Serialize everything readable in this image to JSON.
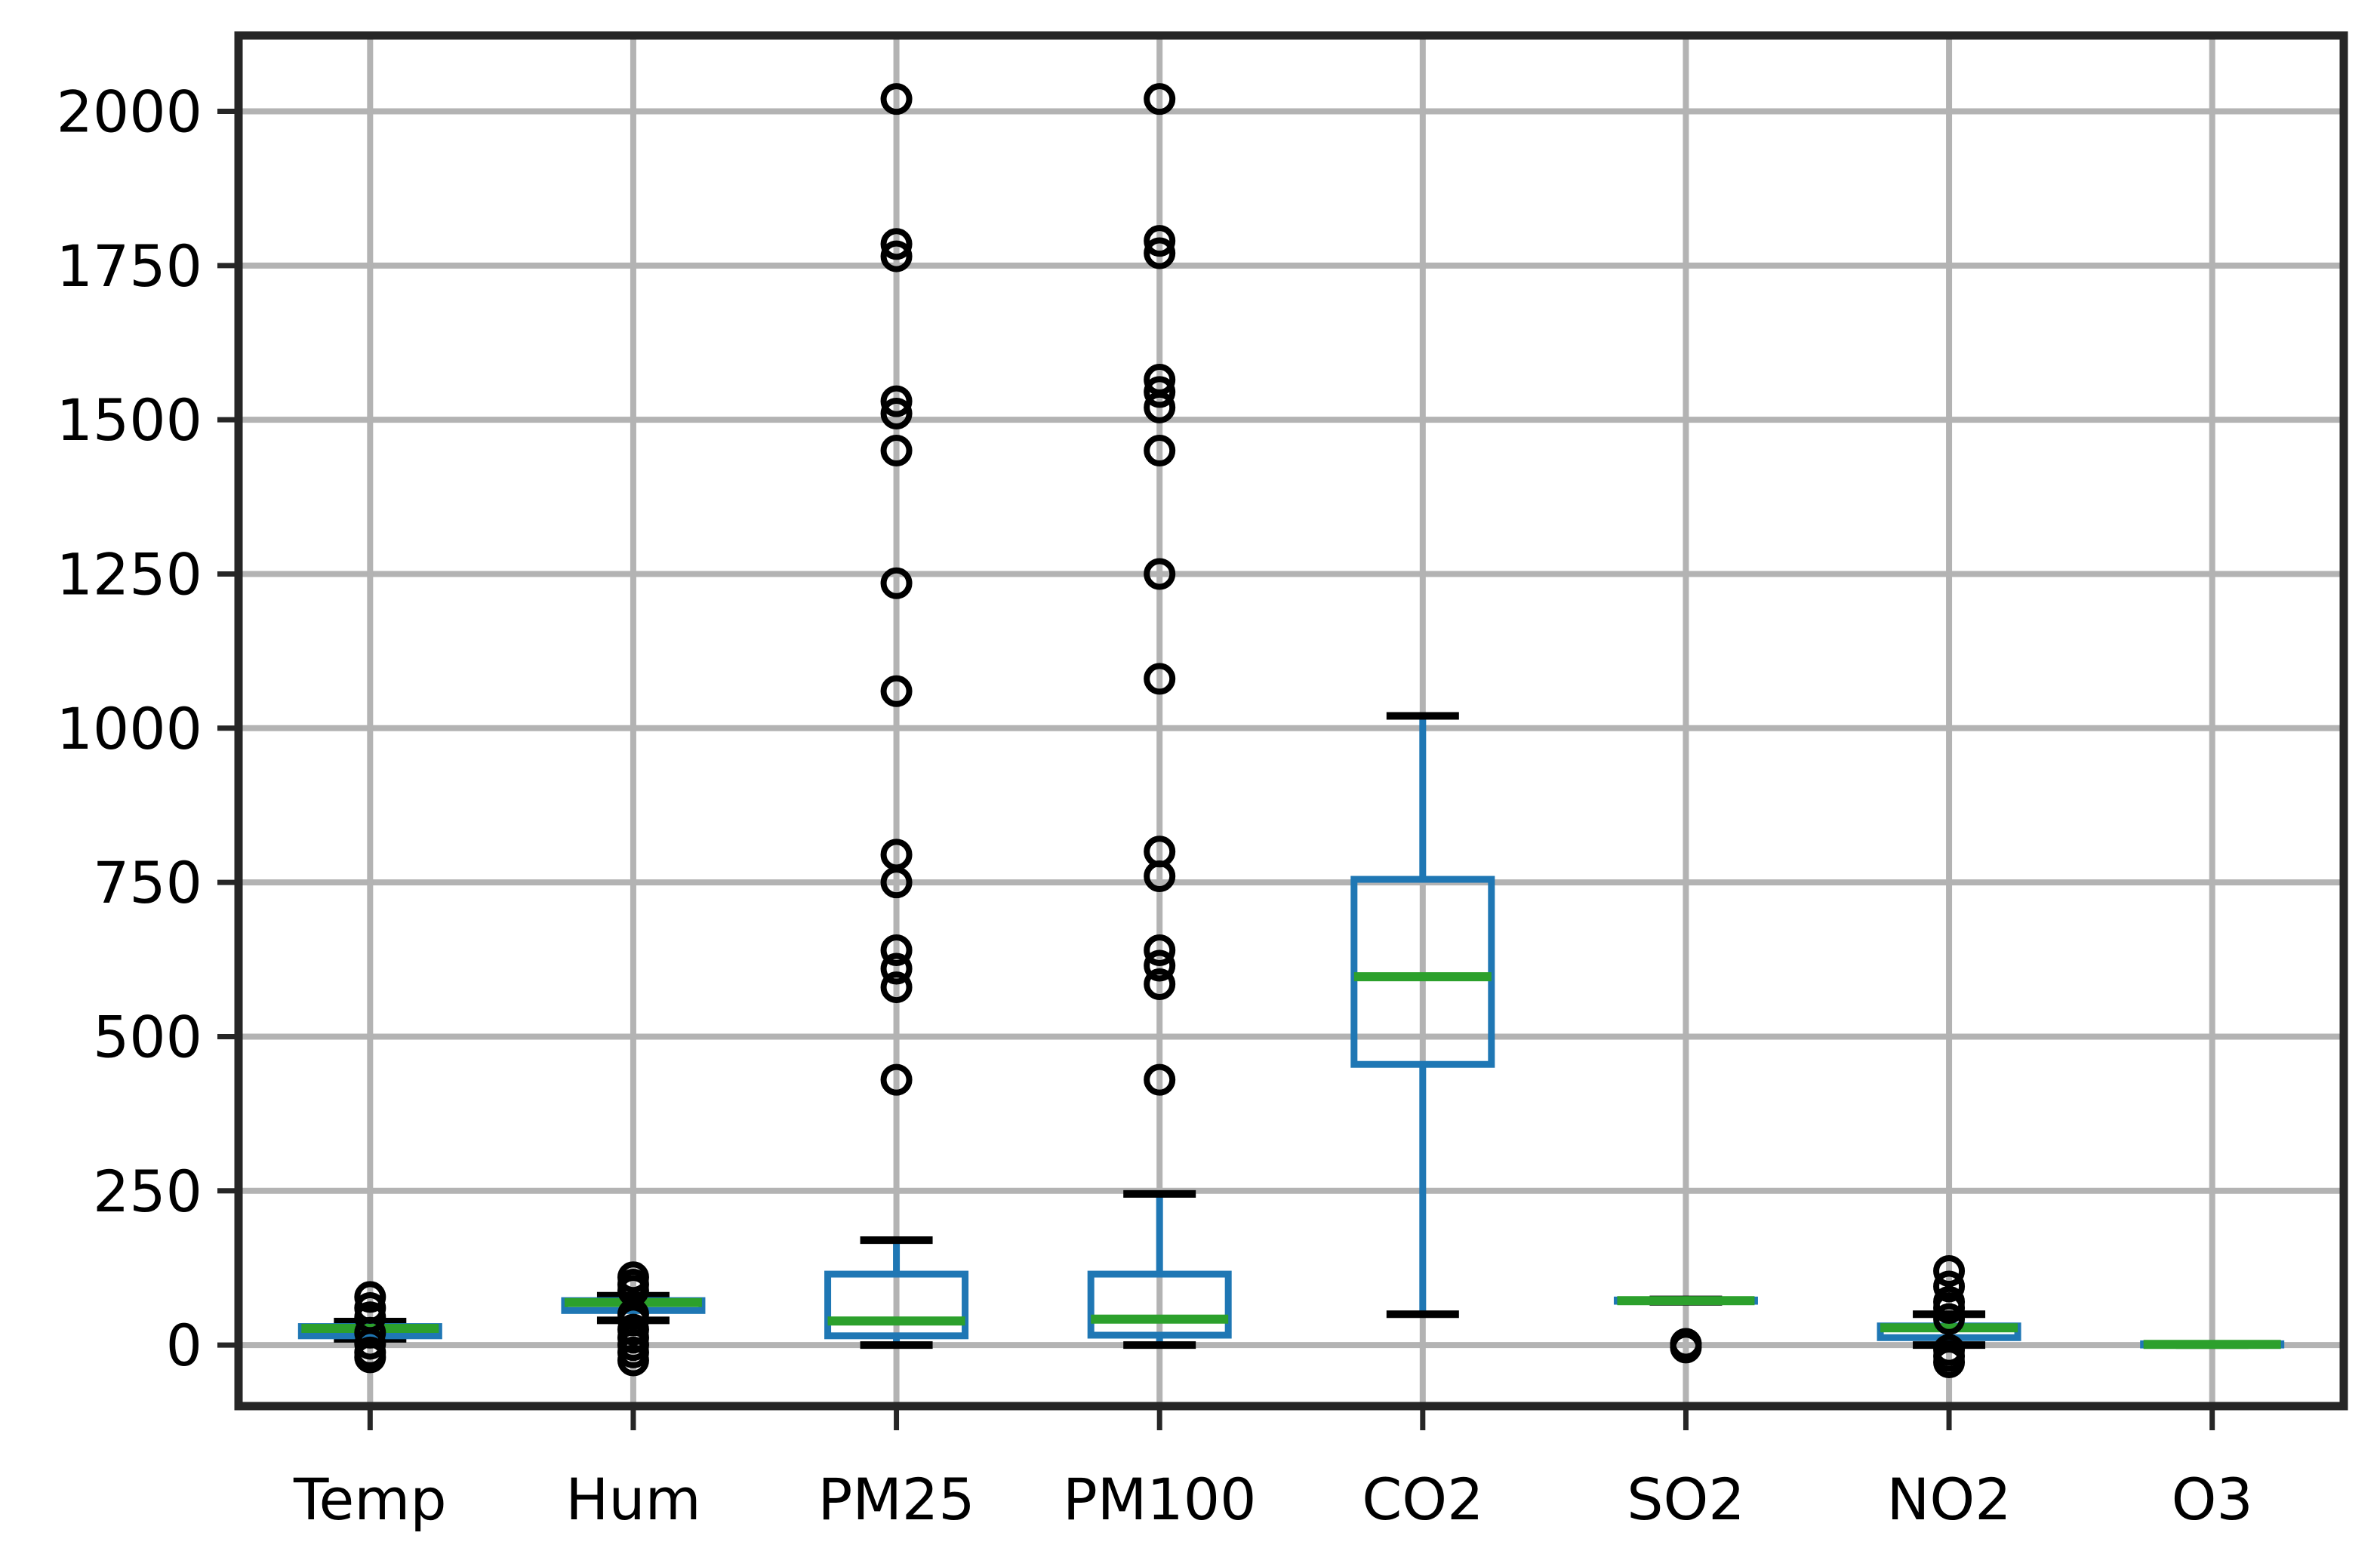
{
  "chart_data": {
    "type": "boxplot",
    "title": "",
    "xlabel": "",
    "ylabel": "",
    "categories": [
      "Temp",
      "Hum",
      "PM25",
      "PM100",
      "CO2",
      "SO2",
      "NO2",
      "O3"
    ],
    "yticks": [
      0,
      250,
      500,
      750,
      1000,
      1250,
      1500,
      1750,
      2000
    ],
    "ylim": [
      -99,
      2123
    ],
    "grid": true,
    "legend_position": "none",
    "colors": {
      "box": "#1f77b4",
      "whisker": "#1f77b4",
      "median": "#2ca02c",
      "cap": "#000000",
      "flier": "#000000",
      "grid": "#b3b3b3",
      "spine": "#262626",
      "text": "#000000",
      "background": "#ffffff"
    },
    "series": [
      {
        "name": "Temp",
        "whisker_low": 10,
        "q1": 15,
        "median": 27,
        "q3": 30,
        "whisker_high": 38,
        "fliers": [
          78,
          60,
          45,
          20,
          2,
          -12,
          -20
        ]
      },
      {
        "name": "Hum",
        "whisker_low": 40,
        "q1": 56,
        "median": 69,
        "q3": 72,
        "whisker_high": 80,
        "fliers": [
          110,
          98,
          88,
          50,
          40,
          25,
          12,
          0,
          -12,
          -25
        ]
      },
      {
        "name": "PM25",
        "whisker_low": 0,
        "q1": 15,
        "median": 39,
        "q3": 115,
        "whisker_high": 170,
        "fliers": [
          2020,
          1785,
          1765,
          1530,
          1510,
          1450,
          1235,
          1060,
          795,
          750,
          640,
          610,
          580,
          430
        ]
      },
      {
        "name": "PM100",
        "whisker_low": 0,
        "q1": 16,
        "median": 42,
        "q3": 115,
        "whisker_high": 245,
        "fliers": [
          2020,
          1790,
          1770,
          1565,
          1545,
          1520,
          1450,
          1250,
          1080,
          800,
          760,
          640,
          615,
          585,
          430
        ]
      },
      {
        "name": "CO2",
        "whisker_low": 50,
        "q1": 455,
        "median": 597,
        "q3": 755,
        "whisker_high": 1020,
        "fliers": []
      },
      {
        "name": "SO2",
        "whisker_low": 70,
        "q1": 71,
        "median": 72,
        "q3": 73,
        "whisker_high": 74,
        "fliers": [
          2,
          -4
        ]
      },
      {
        "name": "NO2",
        "whisker_low": 0,
        "q1": 12,
        "median": 28,
        "q3": 31,
        "whisker_high": 50,
        "fliers": [
          120,
          95,
          70,
          60,
          42,
          -8,
          -18,
          -28
        ]
      },
      {
        "name": "O3",
        "whisker_low": 0,
        "q1": 0,
        "median": 1,
        "q3": 2,
        "whisker_high": 2,
        "fliers": []
      }
    ]
  }
}
